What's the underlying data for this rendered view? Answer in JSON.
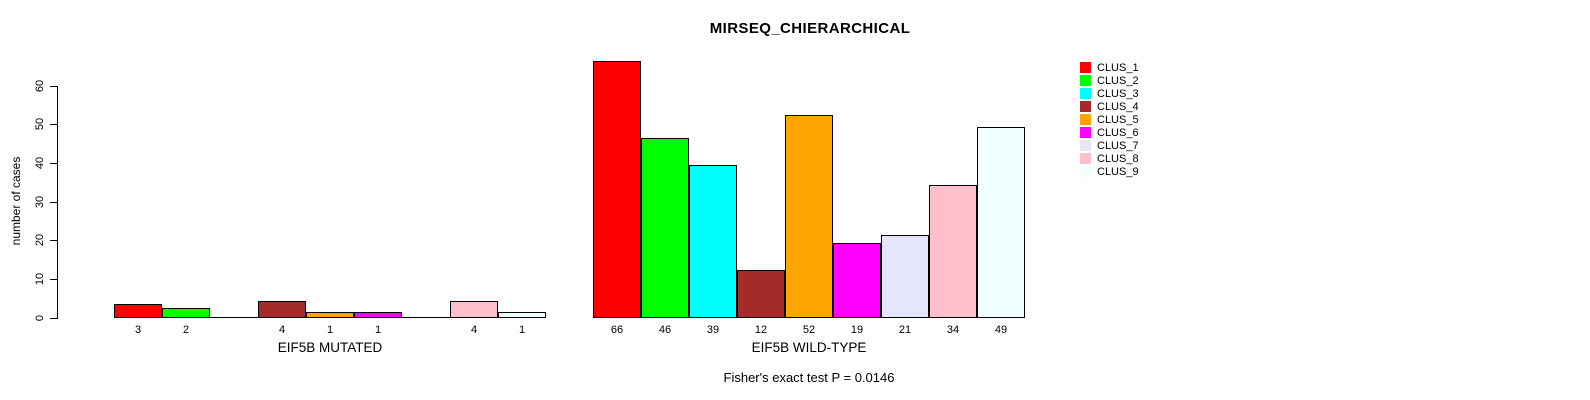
{
  "chart_data": {
    "type": "bar",
    "title": "MIRSEQ_CHIERARCHICAL",
    "ylabel": "number of cases",
    "ylim": [
      0,
      60
    ],
    "yticks": [
      0,
      10,
      20,
      30,
      40,
      50,
      60
    ],
    "grid": false,
    "legend_position": "top-right",
    "categories": [
      "CLUS_1",
      "CLUS_2",
      "CLUS_3",
      "CLUS_4",
      "CLUS_5",
      "CLUS_6",
      "CLUS_7",
      "CLUS_8",
      "CLUS_9"
    ],
    "cluster_colors": [
      "#FF0000",
      "#00FF00",
      "#00FFFF",
      "#A52A2A",
      "#FFA500",
      "#FF00FF",
      "#E6E6FA",
      "#FFC0CB",
      "#F0FFFF"
    ],
    "series": [
      {
        "name": "EIF5B MUTATED",
        "values": [
          3,
          2,
          0,
          4,
          1,
          1,
          0,
          4,
          1
        ],
        "bar_labels": [
          "3",
          "2",
          "",
          "4",
          "1",
          "1",
          "",
          "4",
          "1"
        ]
      },
      {
        "name": "EIF5B WILD-TYPE",
        "values": [
          66,
          46,
          39,
          12,
          52,
          19,
          21,
          34,
          49
        ],
        "bar_labels": [
          "66",
          "46",
          "39",
          "12",
          "52",
          "19",
          "21",
          "34",
          "49"
        ]
      }
    ],
    "footnote": "Fisher's exact test P = 0.0146"
  }
}
